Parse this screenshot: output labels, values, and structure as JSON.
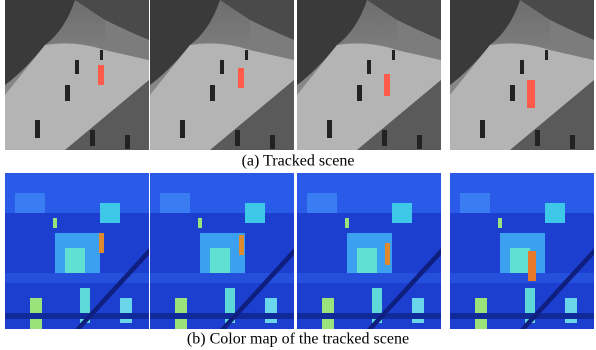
{
  "figure": {
    "rows": [
      {
        "caption": "(a) Tracked scene"
      },
      {
        "caption": "(b) Color map of the tracked scene"
      }
    ]
  }
}
